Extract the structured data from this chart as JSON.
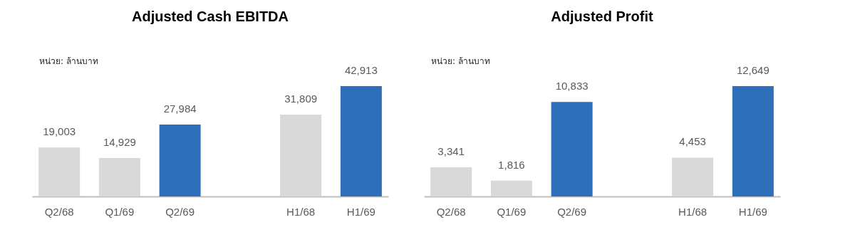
{
  "chart_data": [
    {
      "type": "bar",
      "title": "Adjusted Cash EBITDA",
      "annotations": [
        "หน่วย: ล้านบาท"
      ],
      "categories": [
        "Q2/68",
        "Q1/69",
        "Q2/69",
        null,
        "H1/68",
        "H1/69"
      ],
      "values": [
        19003,
        14929,
        27984,
        null,
        31809,
        42913
      ],
      "colors": [
        "#d9d9d9",
        "#d9d9d9",
        "#2e6fba",
        null,
        "#d9d9d9",
        "#2e6fba"
      ],
      "value_labels": [
        "19,003",
        "14,929",
        "27,984",
        null,
        "31,809",
        "42,913"
      ]
    },
    {
      "type": "bar",
      "title": "Adjusted Profit",
      "annotations": [
        "หน่วย: ล้านบาท"
      ],
      "categories": [
        "Q2/68",
        "Q1/69",
        "Q2/69",
        null,
        "H1/68",
        "H1/69"
      ],
      "values": [
        3341,
        1816,
        10833,
        null,
        4453,
        12649
      ],
      "colors": [
        "#d9d9d9",
        "#d9d9d9",
        "#2e6fba",
        null,
        "#d9d9d9",
        "#2e6fba"
      ],
      "value_labels": [
        "3,341",
        "1,816",
        "10,833",
        null,
        "4,453",
        "12,649"
      ]
    }
  ]
}
